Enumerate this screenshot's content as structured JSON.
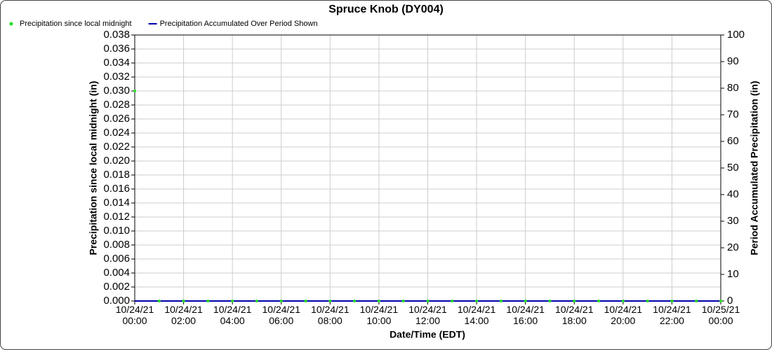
{
  "chart_data": {
    "type": "line",
    "title": "Spruce Knob (DY004)",
    "xlabel": "Date/Time (EDT)",
    "ylabel": "Precipitation since local midnight (in)",
    "y2label": "Period Accumulated Precipitation (in)",
    "x": [
      "10/24/21 00:00",
      "10/24/21 01:00",
      "10/24/21 02:00",
      "10/24/21 03:00",
      "10/24/21 04:00",
      "10/24/21 05:00",
      "10/24/21 06:00",
      "10/24/21 07:00",
      "10/24/21 08:00",
      "10/24/21 09:00",
      "10/24/21 10:00",
      "10/24/21 11:00",
      "10/24/21 12:00",
      "10/24/21 13:00",
      "10/24/21 14:00",
      "10/24/21 15:00",
      "10/24/21 16:00",
      "10/24/21 17:00",
      "10/24/21 18:00",
      "10/24/21 19:00",
      "10/24/21 20:00",
      "10/24/21 21:00",
      "10/24/21 22:00",
      "10/24/21 23:00",
      "10/25/21 00:00"
    ],
    "series": [
      {
        "name": "Precipitation since local midnight",
        "color": "#22dd22",
        "marker": "dot",
        "values": [
          0.03,
          0,
          0,
          0,
          0,
          0,
          0,
          0,
          0,
          0,
          0,
          0,
          0,
          0,
          0,
          0,
          0,
          0,
          0,
          0,
          0,
          0,
          0,
          0,
          0
        ]
      },
      {
        "name": "Precipitation Accumulated Over Period Shown",
        "color": "#0000aa",
        "marker": "line",
        "axis": "y2",
        "values": [
          0,
          0,
          0,
          0,
          0,
          0,
          0,
          0,
          0,
          0,
          0,
          0,
          0,
          0,
          0,
          0,
          0,
          0,
          0,
          0,
          0,
          0,
          0,
          0,
          0
        ]
      }
    ],
    "xlim": [
      "10/24/21 00:00",
      "10/25/21 00:00"
    ],
    "xticks": [
      "10/24/21 00:00",
      "10/24/21 02:00",
      "10/24/21 04:00",
      "10/24/21 06:00",
      "10/24/21 08:00",
      "10/24/21 10:00",
      "10/24/21 12:00",
      "10/24/21 14:00",
      "10/24/21 16:00",
      "10/24/21 18:00",
      "10/24/21 20:00",
      "10/24/21 22:00",
      "10/25/21 00:00"
    ],
    "ylim": [
      0,
      0.038
    ],
    "yticks": [
      {
        "value": 0,
        "label": "0.000"
      },
      {
        "value": 0.002,
        "label": "0.002"
      },
      {
        "value": 0.004,
        "label": "0.004"
      },
      {
        "value": 0.006,
        "label": "0.006"
      },
      {
        "value": 0.008,
        "label": "0.008"
      },
      {
        "value": 0.01,
        "label": "0.010"
      },
      {
        "value": 0.012,
        "label": "0.012"
      },
      {
        "value": 0.014,
        "label": "0.014"
      },
      {
        "value": 0.016,
        "label": "0.016"
      },
      {
        "value": 0.018,
        "label": "0.018"
      },
      {
        "value": 0.02,
        "label": "0.020"
      },
      {
        "value": 0.022,
        "label": "0.022"
      },
      {
        "value": 0.024,
        "label": "0.024"
      },
      {
        "value": 0.026,
        "label": "0.026"
      },
      {
        "value": 0.028,
        "label": "0.028"
      },
      {
        "value": 0.03,
        "label": "0.030"
      },
      {
        "value": 0.032,
        "label": "0.032"
      },
      {
        "value": 0.034,
        "label": "0.034"
      },
      {
        "value": 0.036,
        "label": "0.036"
      },
      {
        "value": 0.038,
        "label": "0.038"
      }
    ],
    "y2lim": [
      0,
      100
    ],
    "y2ticks": [
      0,
      10,
      20,
      30,
      40,
      50,
      60,
      70,
      80,
      90,
      100
    ],
    "grid": true,
    "legend": "top-left"
  }
}
